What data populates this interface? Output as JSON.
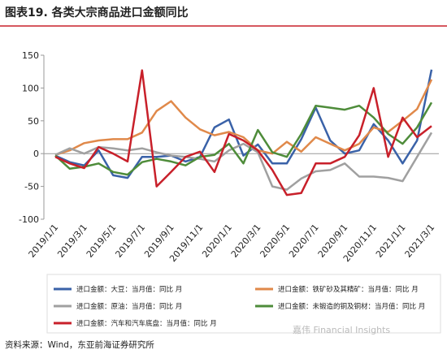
{
  "chart_data": {
    "type": "line",
    "title": "图表19. 各类大宗商品进口金额同比",
    "source": "资料来源：Wind，东亚前海证券研究所",
    "watermark": "嘉伟 Financial Insights",
    "categories": [
      "2019/1/1",
      null,
      "2019/3/1",
      null,
      "2019/5/1",
      null,
      "2019/7/1",
      null,
      "2019/9/1",
      null,
      "2019/11/1",
      null,
      "2020/1/1",
      null,
      "2020/3/1",
      null,
      "2020/5/1",
      null,
      "2020/7/1",
      null,
      "2020/9/1",
      null,
      "2020/11/1",
      null,
      "2021/1/1",
      null,
      "2021/3/1"
    ],
    "ylim": [
      -100,
      150
    ],
    "yticks": [
      -100,
      -50,
      0,
      50,
      100,
      150
    ],
    "series": [
      {
        "name": "进口金额：大豆：当月值：同比 月",
        "color": "#3a62a8",
        "values": [
          -3,
          -13,
          -18,
          5,
          -33,
          -37,
          -5,
          -5,
          -3,
          -12,
          -5,
          40,
          52,
          -3,
          14,
          -15,
          -15,
          22,
          70,
          20,
          0,
          5,
          45,
          20,
          -15,
          20,
          128
        ]
      },
      {
        "name": "进口金额：铁矿砂及其精矿：当月值：同比 月",
        "color": "#e0894a",
        "values": [
          -2,
          5,
          16,
          20,
          22,
          22,
          32,
          65,
          80,
          55,
          37,
          28,
          33,
          25,
          5,
          0,
          18,
          3,
          25,
          15,
          5,
          15,
          40,
          33,
          50,
          68,
          113
        ]
      },
      {
        "name": "进口金额：原油：当月值：同比 月",
        "color": "#a0a0a0",
        "values": [
          -2,
          8,
          0,
          10,
          8,
          5,
          8,
          2,
          -3,
          -5,
          -8,
          -12,
          5,
          15,
          2,
          -50,
          -55,
          -38,
          -27,
          -25,
          -15,
          -35,
          -35,
          -37,
          -42,
          -5,
          32
        ]
      },
      {
        "name": "进口金额：未锻造的铜及铜材：当月值：同比 月",
        "color": "#4e8c3a",
        "values": [
          -3,
          -23,
          -20,
          -15,
          -28,
          -32,
          -13,
          -8,
          -12,
          -18,
          -5,
          -2,
          15,
          -15,
          36,
          2,
          -5,
          30,
          73,
          70,
          67,
          73,
          55,
          30,
          15,
          40,
          78
        ]
      },
      {
        "name": "进口金额：汽车和汽车底盘：当月值：同比 月",
        "color": "#c8202a",
        "values": [
          -5,
          -15,
          -22,
          10,
          0,
          -12,
          127,
          -50,
          -28,
          -5,
          3,
          -28,
          30,
          20,
          5,
          -25,
          -63,
          -60,
          -15,
          -15,
          -5,
          28,
          100,
          -5,
          55,
          25,
          42
        ]
      }
    ]
  }
}
